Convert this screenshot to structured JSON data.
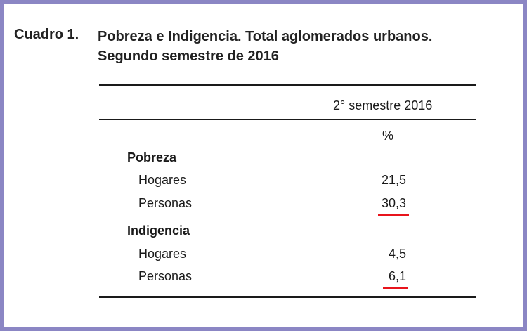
{
  "title": {
    "label": "Cuadro 1.",
    "line1": "Pobreza e Indigencia. Total aglomerados urbanos.",
    "line2": "Segundo semestre de 2016"
  },
  "table": {
    "column_header": "2° semestre 2016",
    "unit": "%",
    "sections": [
      {
        "name": "Pobreza",
        "rows": [
          {
            "label": "Hogares",
            "value": "21,5"
          },
          {
            "label": "Personas",
            "value": "30,3",
            "highlighted": true
          }
        ]
      },
      {
        "name": "Indigencia",
        "rows": [
          {
            "label": "Hogares",
            "value": "4,5"
          },
          {
            "label": "Personas",
            "value": "6,1",
            "highlighted": true
          }
        ]
      }
    ]
  },
  "colors": {
    "frame": "#8b86c4",
    "highlight_underline": "#e8141c"
  }
}
